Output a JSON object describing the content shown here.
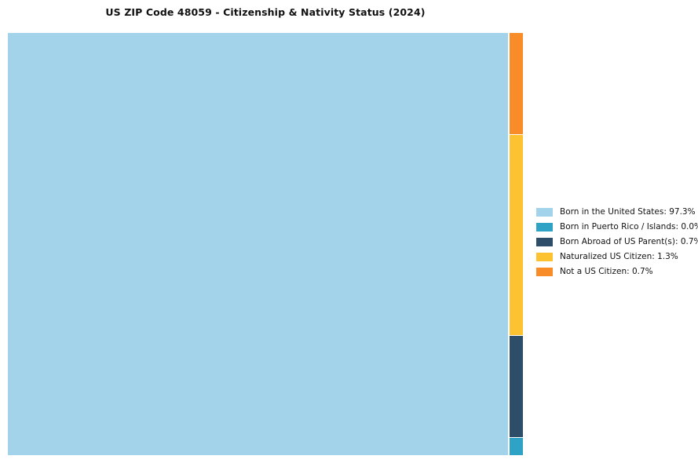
{
  "chart_data": {
    "type": "treemap",
    "title": "US ZIP Code 48059 - Citizenship & Nativity Status (2024)",
    "series": [
      {
        "label": "Born in the United States",
        "value": 97.3,
        "color": "#a3d3ea"
      },
      {
        "label": "Born in Puerto Rico / Islands",
        "value": 0.0,
        "color": "#2fa3c5"
      },
      {
        "label": "Born Abroad of US Parent(s)",
        "value": 0.7,
        "color": "#2e4d68"
      },
      {
        "label": "Naturalized US Citizen",
        "value": 1.3,
        "color": "#fcc232"
      },
      {
        "label": "Not a US Citizen",
        "value": 0.7,
        "color": "#f78c29"
      }
    ],
    "legend_position": "right",
    "treemap_layout": {
      "main_rect_series_index": 0,
      "main_rect_width_pct": 97.1,
      "column_segments": [
        {
          "series_index": 4,
          "height_weight": 24.2
        },
        {
          "series_index": 3,
          "height_weight": 47.6
        },
        {
          "series_index": 2,
          "height_weight": 24.0
        },
        {
          "series_index": 1,
          "height_weight": 4.2
        }
      ]
    }
  },
  "legend": {
    "items": [
      {
        "label": "Born in the United States: 97.3%",
        "color": "#a3d3ea"
      },
      {
        "label": "Born in Puerto Rico / Islands: 0.0%",
        "color": "#2fa3c5"
      },
      {
        "label": "Born Abroad of US Parent(s): 0.7%",
        "color": "#2e4d68"
      },
      {
        "label": "Naturalized US Citizen: 1.3%",
        "color": "#fcc232"
      },
      {
        "label": "Not a US Citizen: 0.7%",
        "color": "#f78c29"
      }
    ]
  }
}
